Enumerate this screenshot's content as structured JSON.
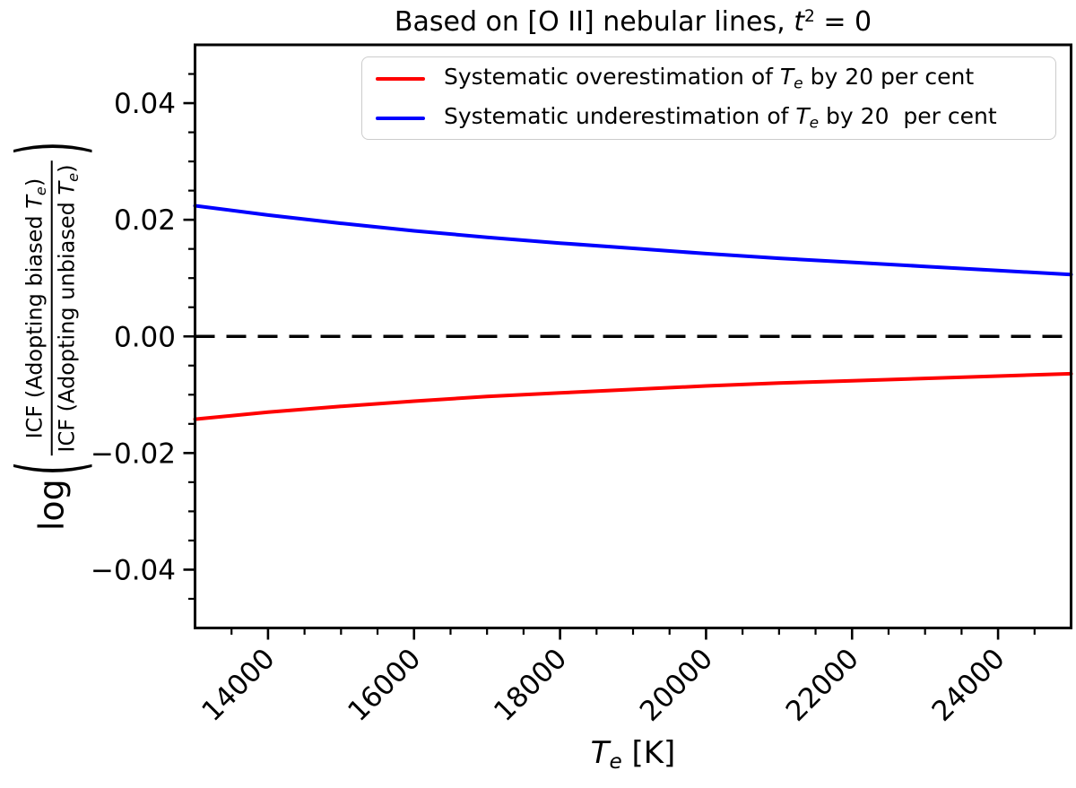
{
  "figure": {
    "title": {
      "pre": "Based on [O II] nebular lines, ",
      "var": "t",
      "sup": "2",
      "post": " = 0"
    },
    "x_axis": {
      "label": {
        "var": "T",
        "sub": "e",
        "post": " [K]"
      }
    },
    "y_axis": {
      "label": {
        "func": "log",
        "paren_open": "(",
        "paren_close": ")",
        "num": {
          "pre": "ICF (Adopting biased ",
          "var": "T",
          "sub": "e",
          "post": ")"
        },
        "den": {
          "pre": "ICF (Adopting unbiased ",
          "var": "T",
          "sub": "e",
          "post": ")"
        }
      }
    },
    "legend": {
      "items": [
        {
          "color": "#ff0000",
          "label": {
            "pre": "Systematic overestimation of ",
            "var": "T",
            "sub": "e",
            "post": " by 20 per cent"
          }
        },
        {
          "color": "#0000ff",
          "label": {
            "pre": "Systematic underestimation of ",
            "var": "T",
            "sub": "e",
            "post": " by 20  per cent"
          }
        }
      ]
    }
  },
  "chart_data": {
    "type": "line",
    "title": "Based on [O II] nebular lines, t² = 0",
    "xlabel": "Tₑ [K]",
    "ylabel": "log( ICF(Adopting biased Tₑ) / ICF(Adopting unbiased Tₑ) )",
    "xlim": [
      13000,
      25000
    ],
    "ylim": [
      -0.05,
      0.05
    ],
    "grid": false,
    "legend_position": "upper right",
    "x": [
      13000,
      14000,
      15000,
      16000,
      17000,
      18000,
      19000,
      20000,
      21000,
      22000,
      23000,
      24000,
      25000
    ],
    "series": [
      {
        "name": "Systematic overestimation of Tₑ by 20 per cent",
        "color": "#ff0000",
        "values": [
          -0.0142,
          -0.013,
          -0.012,
          -0.0111,
          -0.0103,
          -0.0097,
          -0.0091,
          -0.0085,
          -0.008,
          -0.0076,
          -0.0072,
          -0.0068,
          -0.0064
        ]
      },
      {
        "name": "Systematic underestimation of Tₑ by 20  per cent",
        "color": "#0000ff",
        "values": [
          0.0224,
          0.0208,
          0.0194,
          0.0181,
          0.017,
          0.016,
          0.0151,
          0.0142,
          0.0134,
          0.0127,
          0.012,
          0.0113,
          0.0106
        ]
      }
    ],
    "reference_line": {
      "y": 0,
      "color": "#000000",
      "style": "dashed"
    },
    "x_ticks": [
      {
        "value": 14000,
        "label": "14000"
      },
      {
        "value": 16000,
        "label": "16000"
      },
      {
        "value": 18000,
        "label": "18000"
      },
      {
        "value": 20000,
        "label": "20000"
      },
      {
        "value": 22000,
        "label": "22000"
      },
      {
        "value": 24000,
        "label": "24000"
      }
    ],
    "y_ticks": [
      {
        "value": 0.04,
        "label": "0.04"
      },
      {
        "value": 0.02,
        "label": "0.02"
      },
      {
        "value": 0.0,
        "label": "0.00"
      },
      {
        "value": -0.02,
        "label": "−0.02"
      },
      {
        "value": -0.04,
        "label": "−0.04"
      }
    ],
    "x_minor_step": 500,
    "x_major_step": 2000,
    "y_minor_step": 0.005,
    "y_major_step": 0.02
  }
}
